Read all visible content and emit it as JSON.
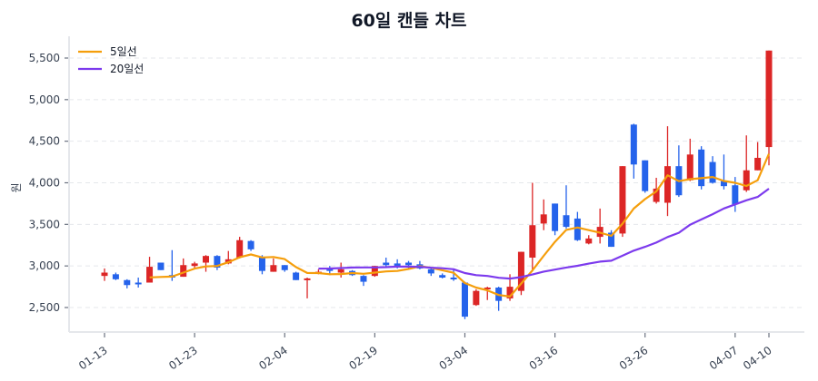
{
  "chart_data": {
    "type": "candlestick",
    "title": "60일 캔들 차트",
    "xlabel": "",
    "ylabel": "원",
    "ylim": [
      2200,
      5750
    ],
    "yticks": [
      2500,
      3000,
      3500,
      4000,
      4500,
      5000,
      5500
    ],
    "ytick_labels": [
      "2,500",
      "3,000",
      "3,500",
      "4,000",
      "4,500",
      "5,000",
      "5,500"
    ],
    "xticks": [
      {
        "index": 0,
        "label": "01-13"
      },
      {
        "index": 8,
        "label": "01-23"
      },
      {
        "index": 16,
        "label": "02-04"
      },
      {
        "index": 24,
        "label": "02-19"
      },
      {
        "index": 32,
        "label": "03-04"
      },
      {
        "index": 40,
        "label": "03-16"
      },
      {
        "index": 48,
        "label": "03-26"
      },
      {
        "index": 56,
        "label": "04-07"
      },
      {
        "index": 59,
        "label": "04-10"
      }
    ],
    "grid": "horizontal-dashed",
    "legend_position": "upper-left",
    "legend": [
      {
        "label": "5일선",
        "color": "#f59e0b"
      },
      {
        "label": "20일선",
        "color": "#7c3aed"
      }
    ],
    "colors": {
      "up": "#dc2626",
      "down": "#2563eb",
      "ma5": "#f59e0b",
      "ma20": "#7c3aed"
    },
    "ohlc": [
      [
        2880,
        2970,
        2820,
        2920
      ],
      [
        2900,
        2920,
        2830,
        2840
      ],
      [
        2830,
        2840,
        2730,
        2770
      ],
      [
        2800,
        2860,
        2740,
        2790
      ],
      [
        2800,
        3110,
        2800,
        2990
      ],
      [
        3040,
        3040,
        2950,
        2950
      ],
      [
        2890,
        3190,
        2820,
        2860
      ],
      [
        2870,
        3090,
        2870,
        3010
      ],
      [
        3000,
        3050,
        2960,
        3030
      ],
      [
        3040,
        3130,
        2930,
        3120
      ],
      [
        3120,
        3130,
        2950,
        2980
      ],
      [
        3030,
        3180,
        3020,
        3080
      ],
      [
        3100,
        3350,
        3090,
        3310
      ],
      [
        3300,
        3310,
        3180,
        3200
      ],
      [
        3100,
        3130,
        2900,
        2940
      ],
      [
        2930,
        3090,
        2930,
        3010
      ],
      [
        3010,
        3010,
        2930,
        2950
      ],
      [
        2920,
        2930,
        2830,
        2830
      ],
      [
        2830,
        2860,
        2610,
        2850
      ],
      [
        2910,
        2960,
        2900,
        2930
      ],
      [
        2970,
        3000,
        2890,
        2940
      ],
      [
        2920,
        3040,
        2860,
        2960
      ],
      [
        2940,
        2950,
        2880,
        2890
      ],
      [
        2880,
        2890,
        2760,
        2810
      ],
      [
        2880,
        3000,
        2870,
        3000
      ],
      [
        3040,
        3100,
        2990,
        3010
      ],
      [
        3030,
        3080,
        2970,
        2990
      ],
      [
        3040,
        3060,
        2970,
        3010
      ],
      [
        3020,
        3060,
        2960,
        2970
      ],
      [
        2960,
        2970,
        2880,
        2910
      ],
      [
        2890,
        2910,
        2850,
        2860
      ],
      [
        2860,
        2970,
        2820,
        2840
      ],
      [
        2800,
        2810,
        2360,
        2390
      ],
      [
        2530,
        2720,
        2520,
        2700
      ],
      [
        2720,
        2750,
        2590,
        2740
      ],
      [
        2740,
        2750,
        2460,
        2580
      ],
      [
        2610,
        2900,
        2580,
        2750
      ],
      [
        2700,
        3170,
        2650,
        3170
      ],
      [
        3100,
        4000,
        2950,
        3490
      ],
      [
        3510,
        3800,
        3430,
        3620
      ],
      [
        3750,
        3750,
        3370,
        3420
      ],
      [
        3610,
        3970,
        3450,
        3470
      ],
      [
        3570,
        3650,
        3300,
        3310
      ],
      [
        3270,
        3370,
        3260,
        3330
      ],
      [
        3350,
        3690,
        3270,
        3470
      ],
      [
        3400,
        3430,
        3230,
        3230
      ],
      [
        3390,
        4200,
        3350,
        4200
      ],
      [
        4700,
        4710,
        4050,
        4220
      ],
      [
        4270,
        4270,
        3880,
        3900
      ],
      [
        3770,
        4060,
        3750,
        3930
      ],
      [
        3760,
        4680,
        3600,
        4200
      ],
      [
        4200,
        4450,
        3830,
        3850
      ],
      [
        4030,
        4530,
        4020,
        4340
      ],
      [
        4400,
        4440,
        3920,
        3960
      ],
      [
        4250,
        4320,
        3990,
        4000
      ],
      [
        4020,
        4340,
        3920,
        3960
      ],
      [
        3970,
        4070,
        3650,
        3740
      ],
      [
        3910,
        4570,
        3890,
        4150
      ],
      [
        4150,
        4490,
        4150,
        4300
      ],
      [
        4430,
        5590,
        4210,
        5590
      ]
    ],
    "ma5_start_index": 4,
    "ma20_start_index": 19
  }
}
